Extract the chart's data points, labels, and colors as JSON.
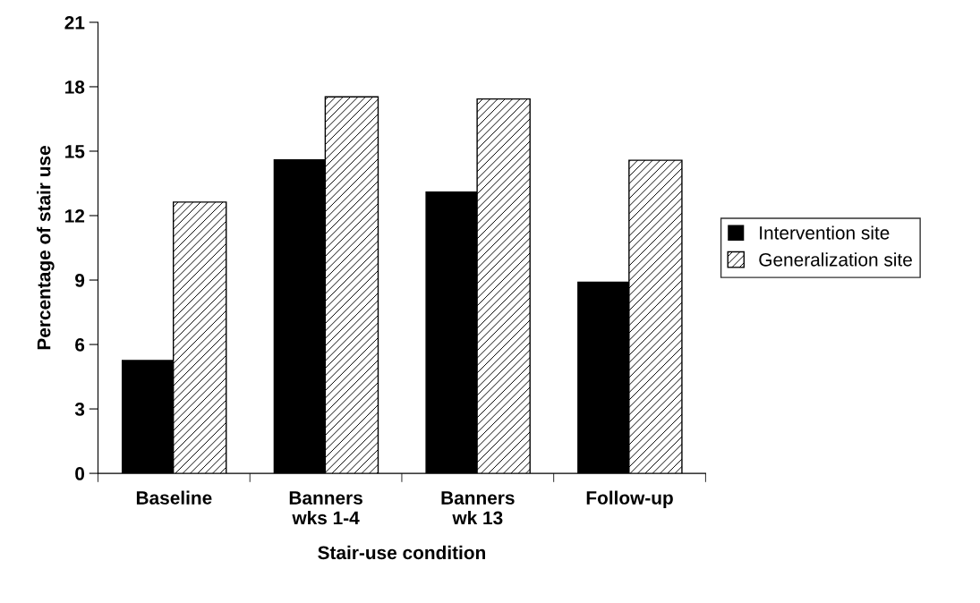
{
  "chart_data": {
    "type": "bar",
    "xlabel": "Stair-use condition",
    "ylabel": "Percentage of stair use",
    "categories": [
      "Baseline",
      "Banners\nwks 1-4",
      "Banners\nwk 13",
      "Follow-up"
    ],
    "series": [
      {
        "name": "Intervention site",
        "color": "#000000",
        "values": [
          5.25,
          14.6,
          13.1,
          8.9
        ]
      },
      {
        "name": "Generalization site",
        "color": "#ffffff",
        "values": [
          12.6,
          17.5,
          17.4,
          14.55
        ]
      }
    ],
    "ylim": [
      0,
      21
    ],
    "yticks": [
      0,
      3,
      6,
      9,
      12,
      15,
      18,
      21
    ],
    "grid": false,
    "legend": "right"
  }
}
